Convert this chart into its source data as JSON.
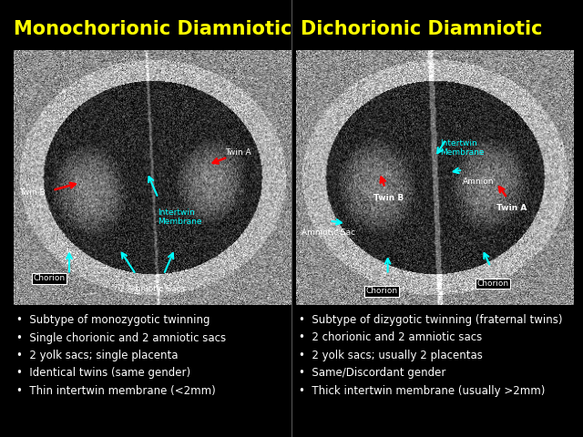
{
  "background_color": "#000000",
  "title_left": "Monochorionic Diamniotic",
  "title_right": "Dichorionic Diamniotic",
  "title_color": "#ffff00",
  "title_fontsize": 15,
  "bullet_color": "#ffffff",
  "bullet_fontsize": 8.5,
  "label_fontsize": 6.5,
  "left_bullets": [
    "Subtype of monozygotic twinning",
    "Single chorionic and 2 amniotic sacs",
    "2 yolk sacs; single placenta",
    "Identical twins (same gender)",
    "Thin intertwin membrane (<2mm)"
  ],
  "right_bullets": [
    "Subtype of dizygotic twinning (fraternal twins)",
    "2 chorionic and 2 amniotic sacs",
    "2 yolk sacs; usually 2 placentas",
    "Same/Discordant gender",
    "Thick intertwin membrane (usually >2mm)"
  ]
}
